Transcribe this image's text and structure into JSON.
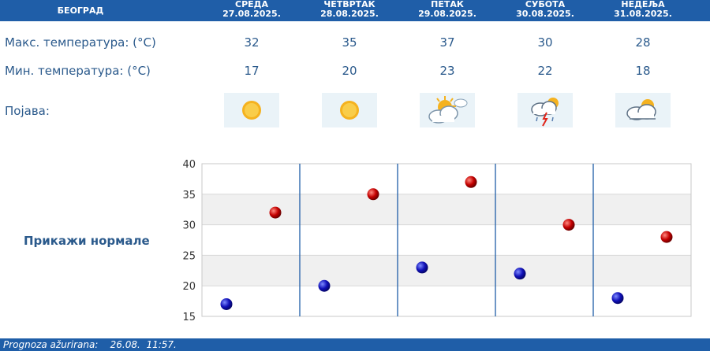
{
  "header": {
    "city": "БЕОГРАД",
    "days": [
      {
        "name": "СРЕДА",
        "date": "27.08.2025."
      },
      {
        "name": "ЧЕТВРТАК",
        "date": "28.08.2025."
      },
      {
        "name": "ПЕТАК",
        "date": "29.08.2025."
      },
      {
        "name": "СУБОТА",
        "date": "30.08.2025."
      },
      {
        "name": "НЕДЕЉА",
        "date": "31.08.2025."
      }
    ]
  },
  "rows": {
    "max_label": "Макс. температура: (°C)",
    "min_label": "Мин. температура: (°C)",
    "phenomenon_label": "Појава:",
    "max": [
      "32",
      "35",
      "37",
      "30",
      "28"
    ],
    "min": [
      "17",
      "20",
      "23",
      "22",
      "18"
    ],
    "icons": [
      "sun-icon",
      "sun-icon",
      "sun-behind-cloud-icon",
      "thunderstorm-icon",
      "cloud-with-sun-icon"
    ]
  },
  "normals_link": "Прикажи нормале",
  "chart_data": {
    "type": "scatter",
    "categories": [
      "СРЕДА",
      "ЧЕТВРТАК",
      "ПЕТАК",
      "СУБОТА",
      "НЕДЕЉА"
    ],
    "series": [
      {
        "values": [
          32,
          35,
          37,
          30,
          28
        ],
        "color": "#c40000"
      },
      {
        "values": [
          17,
          20,
          23,
          22,
          18
        ],
        "color": "#1010b8"
      }
    ],
    "ylim": [
      15,
      40
    ],
    "yticks": [
      "15",
      "20",
      "25",
      "30",
      "35",
      "40"
    ],
    "band_color": "#f0f0f0",
    "divider_color": "#1f5ea8"
  },
  "footer": {
    "label": "Prognoza ažurirana:",
    "value": "26.08.  11:57."
  },
  "colors": {
    "header_bg": "#1f5ea8",
    "text": "#2b5a8c",
    "icon_bg": "#eaf3f8"
  }
}
